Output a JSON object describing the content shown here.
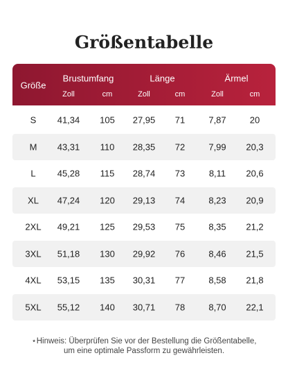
{
  "title": "Größentabelle",
  "table": {
    "size_header": "Größe",
    "groups": [
      {
        "label": "Brustumfang",
        "units": [
          "Zoll",
          "cm"
        ]
      },
      {
        "label": "Länge",
        "units": [
          "Zoll",
          "cm"
        ]
      },
      {
        "label": "Ärmel",
        "units": [
          "Zoll",
          "cm"
        ]
      }
    ],
    "rows": [
      [
        "S",
        "41,34",
        "105",
        "27,95",
        "71",
        "7,87",
        "20"
      ],
      [
        "M",
        "43,31",
        "110",
        "28,35",
        "72",
        "7,99",
        "20,3"
      ],
      [
        "L",
        "45,28",
        "115",
        "28,74",
        "73",
        "8,11",
        "20,6"
      ],
      [
        "XL",
        "47,24",
        "120",
        "29,13",
        "74",
        "8,23",
        "20,9"
      ],
      [
        "2XL",
        "49,21",
        "125",
        "29,53",
        "75",
        "8,35",
        "21,2"
      ],
      [
        "3XL",
        "51,18",
        "130",
        "29,92",
        "76",
        "8,46",
        "21,5"
      ],
      [
        "4XL",
        "53,15",
        "135",
        "30,31",
        "77",
        "8,58",
        "21,8"
      ],
      [
        "5XL",
        "55,12",
        "140",
        "30,71",
        "78",
        "8,70",
        "22,1"
      ]
    ]
  },
  "note": [
    "⋆Hinweis: Überprüfen Sie vor der Bestellung die Größentabelle,",
    "um eine optimale Passform zu gewährleisten."
  ]
}
